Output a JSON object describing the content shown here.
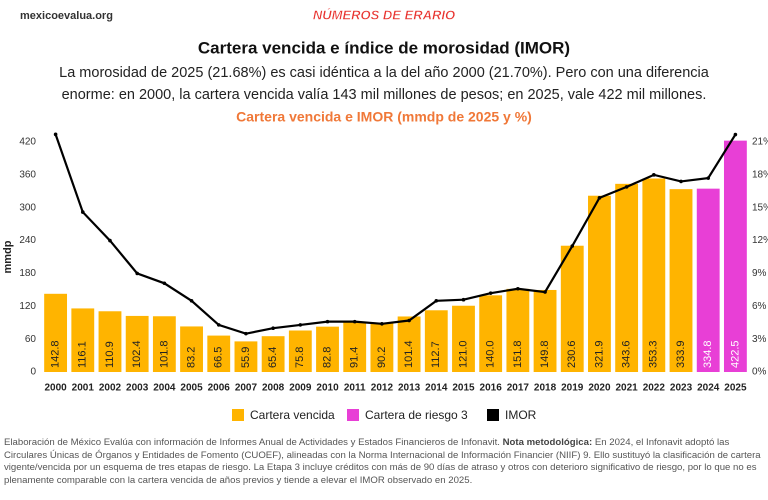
{
  "header": {
    "site": "mexicoevalua.org",
    "logo": "NÚMEROS DE ERARIO"
  },
  "chart_data": {
    "type": "bar",
    "title": "Cartera vencida e índice de morosidad (IMOR)",
    "subtitle": [
      "La morosidad de 2025 (21.68%) es casi idéntica a la del año 2000 (21.70%). Pero con una diferencia",
      "enorme: en 2000, la cartera vencida valía 143 mil millones de pesos; en 2025, vale 422 mil millones."
    ],
    "chart_subtitle": "Cartera vencida e IMOR (mmdp de 2025 y %)",
    "ylabel": "mmdp",
    "categories": [
      "2000",
      "2001",
      "2002",
      "2003",
      "2004",
      "2005",
      "2006",
      "2007",
      "2008",
      "2009",
      "2010",
      "2011",
      "2012",
      "2013",
      "2014",
      "2015",
      "2016",
      "2017",
      "2018",
      "2019",
      "2020",
      "2021",
      "2022",
      "2023",
      "2024",
      "2025"
    ],
    "series": [
      {
        "name": "Cartera vencida",
        "color": "#FFB400",
        "values": [
          142.8,
          116.1,
          110.9,
          102.4,
          101.8,
          83.2,
          66.5,
          55.9,
          65.4,
          75.8,
          82.8,
          91.4,
          90.2,
          101.4,
          112.7,
          121.0,
          140.0,
          151.8,
          149.8,
          230.6,
          321.9,
          343.6,
          353.3,
          333.9,
          null,
          null
        ],
        "value_labels": [
          "142.8",
          "116.1",
          "110.9",
          "102.4",
          "101.8",
          "83.2",
          "66.5",
          "55.9",
          "65.4",
          "75.8",
          "82.8",
          "91.4",
          "90.2",
          "101.4",
          "112.7",
          "121.0",
          "140.0",
          "151.8",
          "149.8",
          "230.6",
          "321.9",
          "343.6",
          "353.3",
          "333.9",
          null,
          null
        ]
      },
      {
        "name": "Cartera de riesgo 3",
        "color": "#E83FD6",
        "values": [
          null,
          null,
          null,
          null,
          null,
          null,
          null,
          null,
          null,
          null,
          null,
          null,
          null,
          null,
          null,
          null,
          null,
          null,
          null,
          null,
          null,
          null,
          null,
          null,
          334.8,
          422.5
        ],
        "value_labels": [
          null,
          null,
          null,
          null,
          null,
          null,
          null,
          null,
          null,
          null,
          null,
          null,
          null,
          null,
          null,
          null,
          null,
          null,
          null,
          null,
          null,
          null,
          null,
          null,
          "334.8",
          "422.5"
        ]
      },
      {
        "name": "IMOR",
        "color": "#000000",
        "type": "line",
        "axis": "y2",
        "values": [
          21.7,
          14.6,
          12.0,
          9.0,
          8.1,
          6.5,
          4.3,
          3.5,
          4.0,
          4.3,
          4.6,
          4.6,
          4.4,
          4.7,
          6.5,
          6.6,
          7.2,
          7.6,
          7.3,
          11.5,
          15.9,
          16.9,
          18.0,
          17.4,
          17.7,
          21.68
        ]
      }
    ],
    "ylim": [
      0,
      420
    ],
    "yticks": [
      0,
      60,
      120,
      180,
      240,
      300,
      360,
      420
    ],
    "y2lim": [
      0,
      21
    ],
    "y2ticks": [
      {
        "value": 0,
        "label": "0%"
      },
      {
        "value": 3,
        "label": "3%"
      },
      {
        "value": 6,
        "label": "6%"
      },
      {
        "value": 9,
        "label": "9%"
      },
      {
        "value": 12,
        "label": "12%"
      },
      {
        "value": 15,
        "label": "15%"
      },
      {
        "value": 18,
        "label": "18%"
      },
      {
        "value": 21,
        "label": "21%"
      }
    ],
    "grid": false,
    "legend": "bottom"
  },
  "footnote": {
    "before": "Elaboración de México Evalúa con información de Informes Anual de Actividades y Estados Financieros de Infonavit. ",
    "bold": "Nota metodológica:",
    "after": " En 2024, el Infonavit adoptó las Circulares Únicas de Órganos y Entidades de Fomento (CUOEF), alineadas con la Norma Internacional de Información Financier (NIIF) 9. Ello sustituyó la clasificación de cartera vigente/vencida por un esquema de tres etapas de riesgo. La Etapa 3 incluye créditos con más de 90 días de atraso y otros con deterioro significativo de riesgo, por lo que no es plenamente comparable con la cartera vencida de años previos y tiende a elevar el IMOR observado en 2025."
  }
}
